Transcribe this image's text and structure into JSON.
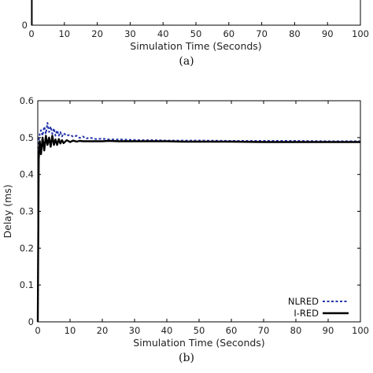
{
  "chart_data": [
    {
      "type": "line",
      "panel": "(a)",
      "caption": "(a)",
      "xlabel": "Simulation Time (Seconds)",
      "ylabel": "",
      "xlim": [
        0,
        100
      ],
      "x_ticks": [
        0,
        10,
        20,
        30,
        40,
        50,
        60,
        70,
        80,
        90,
        100
      ],
      "y_ticks": [
        0
      ],
      "grid": false,
      "series": [
        {
          "name": "",
          "color": "#000000",
          "x": [
            0.1,
            0.1
          ],
          "y": [
            0,
            1
          ]
        }
      ]
    },
    {
      "type": "line",
      "panel": "(b)",
      "caption": "(b)",
      "xlabel": "Simulation Time (Seconds)",
      "ylabel": "Delay (ms)",
      "xlim": [
        0,
        100
      ],
      "ylim": [
        0,
        0.6
      ],
      "x_ticks": [
        0,
        10,
        20,
        30,
        40,
        50,
        60,
        70,
        80,
        90,
        100
      ],
      "y_ticks": [
        0,
        0.1,
        0.2,
        0.3,
        0.4,
        0.5,
        0.6
      ],
      "grid": false,
      "legend": "bottom-right",
      "series": [
        {
          "name": "NLRED",
          "color": "#2233aa",
          "dash": "dotted",
          "x": [
            0,
            0.3,
            0.6,
            1.0,
            1.5,
            2.0,
            2.5,
            3.0,
            3.5,
            4.0,
            4.5,
            5.0,
            5.5,
            6.0,
            6.5,
            7.0,
            7.5,
            8.0,
            9.0,
            10.0,
            11.0,
            12.0,
            13.0,
            14.0,
            15.0,
            16.0,
            18.0,
            20.0,
            22.0,
            25.0,
            28.0,
            32.0,
            36.0,
            40.0,
            45.0,
            50.0,
            60.0,
            70.0,
            80.0,
            90.0,
            100.0
          ],
          "y": [
            0,
            0.49,
            0.51,
            0.52,
            0.505,
            0.53,
            0.51,
            0.54,
            0.515,
            0.53,
            0.51,
            0.525,
            0.505,
            0.52,
            0.505,
            0.515,
            0.503,
            0.512,
            0.505,
            0.508,
            0.502,
            0.505,
            0.499,
            0.503,
            0.497,
            0.5,
            0.496,
            0.497,
            0.495,
            0.495,
            0.494,
            0.493,
            0.493,
            0.492,
            0.492,
            0.492,
            0.491,
            0.491,
            0.491,
            0.49,
            0.49
          ]
        },
        {
          "name": "I-RED",
          "color": "#000000",
          "dash": "solid",
          "x": [
            0,
            0.3,
            0.6,
            1.0,
            1.5,
            2.0,
            2.5,
            3.0,
            3.5,
            4.0,
            4.5,
            5.0,
            5.5,
            6.0,
            6.5,
            7.0,
            7.5,
            8.0,
            9.0,
            10.0,
            11.0,
            12.0,
            13.0,
            14.0,
            15.0,
            16.0,
            18.0,
            20.0,
            22.0,
            25.0,
            28.0,
            32.0,
            36.0,
            40.0,
            45.0,
            50.0,
            60.0,
            70.0,
            80.0,
            90.0,
            100.0
          ],
          "y": [
            0,
            0.44,
            0.49,
            0.455,
            0.5,
            0.465,
            0.505,
            0.48,
            0.5,
            0.475,
            0.505,
            0.48,
            0.495,
            0.48,
            0.496,
            0.484,
            0.493,
            0.485,
            0.493,
            0.488,
            0.492,
            0.489,
            0.491,
            0.49,
            0.49,
            0.49,
            0.49,
            0.49,
            0.491,
            0.49,
            0.49,
            0.49,
            0.49,
            0.49,
            0.489,
            0.489,
            0.489,
            0.488,
            0.488,
            0.488,
            0.488
          ]
        }
      ]
    }
  ]
}
